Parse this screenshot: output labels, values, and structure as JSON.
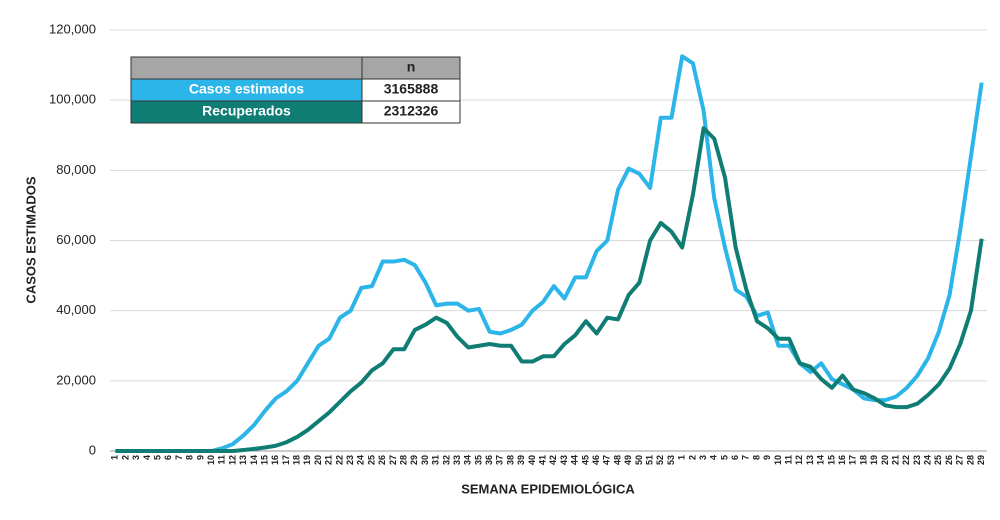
{
  "chart_data": {
    "type": "line",
    "y_label": "CASOS ESTIMADOS",
    "x_label": "SEMANA EPIDEMIOLÓGICA",
    "categories": [
      "1",
      "2",
      "3",
      "4",
      "5",
      "6",
      "7",
      "8",
      "9",
      "10",
      "11",
      "12",
      "13",
      "14",
      "15",
      "16",
      "17",
      "18",
      "19",
      "20",
      "21",
      "22",
      "23",
      "24",
      "25",
      "26",
      "27",
      "28",
      "29",
      "30",
      "31",
      "32",
      "33",
      "34",
      "35",
      "36",
      "37",
      "38",
      "39",
      "40",
      "41",
      "42",
      "43",
      "44",
      "45",
      "46",
      "47",
      "48",
      "49",
      "50",
      "51",
      "52",
      "53",
      "1",
      "2",
      "3",
      "4",
      "5",
      "6",
      "7",
      "8",
      "9",
      "10",
      "11",
      "12",
      "13",
      "14",
      "15",
      "16",
      "17",
      "18",
      "19",
      "20",
      "21",
      "22",
      "23",
      "24",
      "25",
      "26",
      "27",
      "28",
      "29"
    ],
    "series": [
      {
        "name": "Casos estimados",
        "color": "#2cb5e8",
        "values": [
          0,
          0,
          0,
          0,
          0,
          0,
          0,
          0,
          0,
          0,
          800,
          2000,
          4500,
          7500,
          11500,
          15000,
          17000,
          20000,
          25000,
          30000,
          32000,
          38000,
          40000,
          46500,
          47000,
          54000,
          54000,
          54500,
          53000,
          48000,
          41500,
          42000,
          42000,
          40000,
          40500,
          34000,
          33500,
          34500,
          36000,
          40000,
          42500,
          47000,
          43500,
          49500,
          49500,
          57000,
          60000,
          74500,
          80500,
          79000,
          75000,
          95000,
          95000,
          112500,
          110500,
          97000,
          72000,
          58000,
          46000,
          44000,
          38500,
          39500,
          30000,
          30000,
          25000,
          22500,
          25000,
          20500,
          19000,
          17500,
          15000,
          14500,
          14500,
          15500,
          18000,
          21500,
          26500,
          34000,
          44500,
          63000,
          84000,
          105000
        ]
      },
      {
        "name": "Recuperados",
        "color": "#0f7d74",
        "values": [
          0,
          0,
          0,
          0,
          0,
          0,
          0,
          0,
          0,
          0,
          0,
          0,
          300,
          600,
          1000,
          1500,
          2500,
          4000,
          6000,
          8500,
          11000,
          14000,
          17000,
          19500,
          23000,
          25000,
          29000,
          29000,
          34500,
          36000,
          38000,
          36500,
          32500,
          29500,
          30000,
          30500,
          30000,
          30000,
          25500,
          25500,
          27000,
          27000,
          30500,
          33000,
          37000,
          33500,
          38000,
          37500,
          44500,
          48000,
          60000,
          65000,
          62500,
          58000,
          73000,
          92000,
          89000,
          78000,
          58000,
          46000,
          37000,
          35000,
          32000,
          32000,
          25000,
          24000,
          20500,
          18000,
          21500,
          17500,
          16500,
          15000,
          13000,
          12500,
          12500,
          13500,
          16000,
          19000,
          23500,
          30500,
          40000,
          60500
        ]
      }
    ],
    "legend_header": "n",
    "totals": [
      3165888,
      2312326
    ],
    "ylim": [
      0,
      120000
    ],
    "yticks": [
      {
        "value": 0,
        "label": "0"
      },
      {
        "value": 20000,
        "label": "20,000"
      },
      {
        "value": 40000,
        "label": "40,000"
      },
      {
        "value": 60000,
        "label": "60,000"
      },
      {
        "value": 80000,
        "label": "80,000"
      },
      {
        "value": 100000,
        "label": "100,000"
      },
      {
        "value": 120000,
        "label": "120,000"
      }
    ],
    "grid": true
  }
}
